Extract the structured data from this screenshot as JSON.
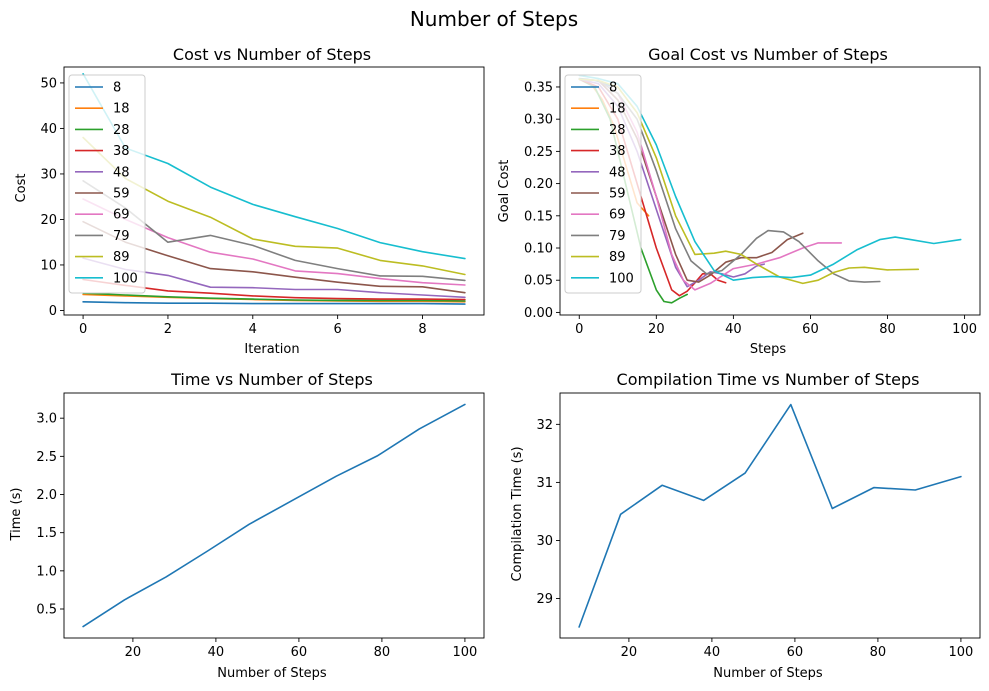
{
  "suptitle": "Number of Steps",
  "colors": [
    "#1f77b4",
    "#ff7f0e",
    "#2ca02c",
    "#d62728",
    "#9467bd",
    "#8c564b",
    "#e377c2",
    "#7f7f7f",
    "#bcbd22",
    "#17becf"
  ],
  "chart_data": [
    {
      "id": "cost",
      "type": "line",
      "title": "Cost vs Number of Steps",
      "xlabel": "Iteration",
      "ylabel": "Cost",
      "xlim": [
        -0.45,
        9.45
      ],
      "ylim": [
        -1,
        53.5
      ],
      "xticks": [
        0,
        2,
        4,
        6,
        8
      ],
      "yticks": [
        0,
        10,
        20,
        30,
        40,
        50
      ],
      "legend": "upper left",
      "x": [
        0,
        1,
        2,
        3,
        4,
        5,
        6,
        7,
        8,
        9
      ],
      "series": [
        {
          "name": "8",
          "values": [
            1.9,
            1.7,
            1.6,
            1.6,
            1.5,
            1.5,
            1.5,
            1.5,
            1.5,
            1.4
          ]
        },
        {
          "name": "18",
          "values": [
            3.5,
            3.2,
            2.9,
            2.6,
            2.4,
            2.2,
            2.1,
            2.0,
            2.0,
            1.9
          ]
        },
        {
          "name": "28",
          "values": [
            3.8,
            3.4,
            3.0,
            2.7,
            2.5,
            2.3,
            2.2,
            2.2,
            2.2,
            2.1
          ]
        },
        {
          "name": "38",
          "values": [
            6.8,
            5.5,
            4.3,
            3.8,
            3.2,
            2.8,
            2.6,
            2.5,
            2.5,
            2.4
          ]
        },
        {
          "name": "48",
          "values": [
            11.5,
            9.0,
            7.7,
            5.1,
            5.0,
            4.6,
            4.6,
            3.9,
            3.4,
            2.9
          ]
        },
        {
          "name": "59",
          "values": [
            19.5,
            15.0,
            12.0,
            9.2,
            8.5,
            7.3,
            6.2,
            5.3,
            5.2,
            3.9
          ]
        },
        {
          "name": "69",
          "values": [
            24.5,
            20.0,
            16.0,
            12.8,
            11.3,
            8.7,
            8.1,
            7.0,
            6.1,
            5.6
          ]
        },
        {
          "name": "79",
          "values": [
            28.5,
            22.5,
            15.0,
            16.5,
            14.3,
            11.0,
            9.2,
            7.6,
            7.5,
            6.6
          ]
        },
        {
          "name": "89",
          "values": [
            38.0,
            29.0,
            24.0,
            20.5,
            15.7,
            14.1,
            13.7,
            11.0,
            9.8,
            7.9
          ]
        },
        {
          "name": "100",
          "values": [
            52.0,
            35.7,
            32.3,
            27.1,
            23.3,
            20.6,
            18.0,
            14.9,
            12.9,
            11.4
          ]
        }
      ]
    },
    {
      "id": "goal",
      "type": "line",
      "title": "Goal Cost vs Number of Steps",
      "xlabel": "Steps",
      "ylabel": "Goal Cost",
      "xlim": [
        -5,
        104
      ],
      "ylim": [
        -0.004,
        0.381
      ],
      "xticks": [
        0,
        20,
        40,
        60,
        80,
        100
      ],
      "yticks": [
        0.0,
        0.05,
        0.1,
        0.15,
        0.2,
        0.25,
        0.3,
        0.35
      ],
      "ytick_labels": [
        "0.00",
        "0.05",
        "0.10",
        "0.15",
        "0.20",
        "0.25",
        "0.30",
        "0.35"
      ],
      "legend": "upper left",
      "series": [
        {
          "name": "8",
          "x": [
            0,
            2,
            4,
            6,
            8
          ],
          "values": [
            0.363,
            0.362,
            0.36,
            0.357,
            0.352
          ]
        },
        {
          "name": "18",
          "x": [
            0,
            3,
            6,
            9,
            12,
            15,
            18
          ],
          "values": [
            0.362,
            0.355,
            0.33,
            0.29,
            0.23,
            0.17,
            0.15
          ]
        },
        {
          "name": "28",
          "x": [
            0,
            4,
            8,
            12,
            16,
            20,
            22,
            24,
            26,
            28
          ],
          "values": [
            0.362,
            0.35,
            0.3,
            0.2,
            0.1,
            0.035,
            0.017,
            0.015,
            0.022,
            0.028
          ]
        },
        {
          "name": "38",
          "x": [
            0,
            5,
            10,
            15,
            20,
            24,
            26,
            28,
            30,
            32,
            34,
            36,
            38
          ],
          "values": [
            0.362,
            0.35,
            0.3,
            0.2,
            0.1,
            0.035,
            0.026,
            0.033,
            0.046,
            0.06,
            0.06,
            0.05,
            0.046
          ]
        },
        {
          "name": "48",
          "x": [
            0,
            5,
            10,
            15,
            20,
            25,
            28,
            31,
            34,
            37,
            40,
            43,
            46,
            48
          ],
          "values": [
            0.362,
            0.355,
            0.32,
            0.25,
            0.16,
            0.07,
            0.04,
            0.05,
            0.063,
            0.06,
            0.055,
            0.06,
            0.072,
            0.075
          ]
        },
        {
          "name": "59",
          "x": [
            0,
            5,
            10,
            15,
            20,
            25,
            28,
            31,
            34,
            38,
            42,
            46,
            50,
            54,
            58
          ],
          "values": [
            0.362,
            0.36,
            0.33,
            0.27,
            0.18,
            0.09,
            0.05,
            0.047,
            0.058,
            0.078,
            0.085,
            0.085,
            0.093,
            0.113,
            0.123
          ]
        },
        {
          "name": "69",
          "x": [
            0,
            5,
            10,
            15,
            20,
            24,
            27,
            30,
            34,
            40,
            46,
            52,
            58,
            62,
            68
          ],
          "values": [
            0.362,
            0.36,
            0.34,
            0.28,
            0.18,
            0.09,
            0.05,
            0.035,
            0.045,
            0.068,
            0.075,
            0.085,
            0.1,
            0.108,
            0.108
          ]
        },
        {
          "name": "79",
          "x": [
            0,
            5,
            10,
            15,
            20,
            25,
            29,
            33,
            37,
            42,
            46,
            49,
            53,
            57,
            62,
            66,
            70,
            74,
            78
          ],
          "values": [
            0.362,
            0.36,
            0.34,
            0.3,
            0.22,
            0.13,
            0.08,
            0.06,
            0.065,
            0.09,
            0.115,
            0.127,
            0.125,
            0.11,
            0.08,
            0.06,
            0.049,
            0.047,
            0.048
          ]
        },
        {
          "name": "89",
          "x": [
            0,
            5,
            10,
            15,
            20,
            25,
            30,
            35,
            38,
            42,
            46,
            52,
            58,
            62,
            66,
            70,
            74,
            80,
            88
          ],
          "values": [
            0.362,
            0.36,
            0.35,
            0.31,
            0.24,
            0.15,
            0.09,
            0.092,
            0.095,
            0.09,
            0.075,
            0.055,
            0.045,
            0.05,
            0.062,
            0.069,
            0.07,
            0.066,
            0.067
          ]
        },
        {
          "name": "100",
          "x": [
            0,
            5,
            10,
            15,
            20,
            25,
            30,
            35,
            40,
            45,
            50,
            55,
            60,
            66,
            72,
            78,
            82,
            86,
            92,
            99
          ],
          "values": [
            0.368,
            0.363,
            0.355,
            0.32,
            0.26,
            0.18,
            0.11,
            0.065,
            0.05,
            0.054,
            0.056,
            0.054,
            0.058,
            0.075,
            0.097,
            0.113,
            0.117,
            0.113,
            0.107,
            0.113
          ]
        }
      ]
    },
    {
      "id": "time",
      "type": "line",
      "title": "Time vs Number of Steps",
      "xlabel": "Number of Steps",
      "ylabel": "Time (s)",
      "xlim": [
        3.4,
        104.6
      ],
      "ylim": [
        0.12,
        3.33
      ],
      "xticks": [
        20,
        40,
        60,
        80,
        100
      ],
      "yticks": [
        0.5,
        1.0,
        1.5,
        2.0,
        2.5,
        3.0
      ],
      "ytick_labels": [
        "0.5",
        "1.0",
        "1.5",
        "2.0",
        "2.5",
        "3.0"
      ],
      "series": [
        {
          "name": "",
          "x": [
            8,
            18,
            28,
            38,
            48,
            59,
            69,
            79,
            89,
            100
          ],
          "values": [
            0.27,
            0.62,
            0.92,
            1.26,
            1.61,
            1.94,
            2.24,
            2.51,
            2.86,
            3.18
          ]
        }
      ]
    },
    {
      "id": "comp",
      "type": "line",
      "title": "Compilation Time vs Number of Steps",
      "xlabel": "Number of Steps",
      "ylabel": "Compilation Time (s)",
      "xlim": [
        3.4,
        104.6
      ],
      "ylim": [
        28.32,
        32.54
      ],
      "xticks": [
        20,
        40,
        60,
        80,
        100
      ],
      "yticks": [
        29,
        30,
        31,
        32
      ],
      "series": [
        {
          "name": "",
          "x": [
            8,
            18,
            28,
            38,
            48,
            59,
            69,
            79,
            89,
            100
          ],
          "values": [
            28.51,
            30.45,
            30.95,
            30.69,
            31.16,
            32.34,
            30.55,
            30.91,
            30.87,
            31.1
          ]
        }
      ]
    }
  ]
}
